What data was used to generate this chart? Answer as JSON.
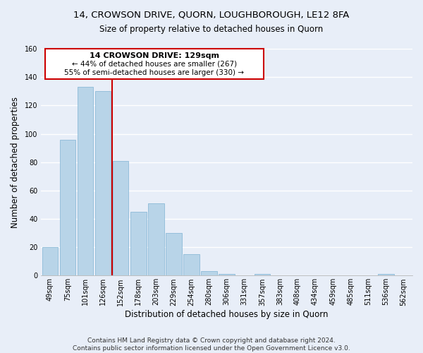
{
  "title": "14, CROWSON DRIVE, QUORN, LOUGHBOROUGH, LE12 8FA",
  "subtitle": "Size of property relative to detached houses in Quorn",
  "xlabel": "Distribution of detached houses by size in Quorn",
  "ylabel": "Number of detached properties",
  "bar_labels": [
    "49sqm",
    "75sqm",
    "101sqm",
    "126sqm",
    "152sqm",
    "178sqm",
    "203sqm",
    "229sqm",
    "254sqm",
    "280sqm",
    "306sqm",
    "331sqm",
    "357sqm",
    "383sqm",
    "408sqm",
    "434sqm",
    "459sqm",
    "485sqm",
    "511sqm",
    "536sqm",
    "562sqm"
  ],
  "bar_values": [
    20,
    96,
    133,
    130,
    81,
    45,
    51,
    30,
    15,
    3,
    1,
    0,
    1,
    0,
    0,
    0,
    0,
    0,
    0,
    1,
    0
  ],
  "bar_color": "#b8d4e8",
  "annotation_title": "14 CROWSON DRIVE: 129sqm",
  "annotation_line1": "← 44% of detached houses are smaller (267)",
  "annotation_line2": "55% of semi-detached houses are larger (330) →",
  "annotation_box_facecolor": "#ffffff",
  "annotation_box_edgecolor": "#cc0000",
  "vline_color": "#cc0000",
  "ylim": [
    0,
    160
  ],
  "yticks": [
    0,
    20,
    40,
    60,
    80,
    100,
    120,
    140,
    160
  ],
  "footer_line1": "Contains HM Land Registry data © Crown copyright and database right 2024.",
  "footer_line2": "Contains public sector information licensed under the Open Government Licence v3.0.",
  "bg_color": "#e8eef8",
  "grid_color": "#ffffff",
  "title_fontsize": 9.5,
  "subtitle_fontsize": 8.5,
  "xlabel_fontsize": 8.5,
  "ylabel_fontsize": 8.5,
  "tick_fontsize": 7,
  "footer_fontsize": 6.5
}
